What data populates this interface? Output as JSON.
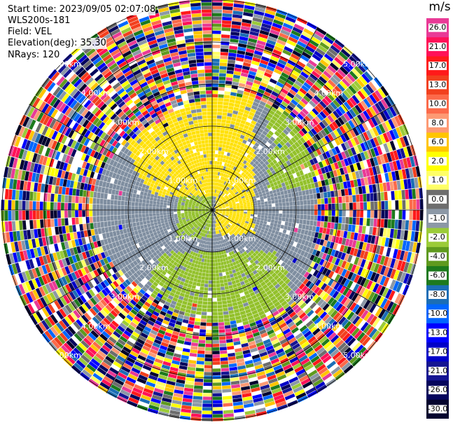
{
  "header": {
    "start_time": "Start time: 2023/09/05 02:07:08",
    "instrument": "WLS200s-181",
    "field": "Field: VEL",
    "elevation": "Elevation(deg): 35.30",
    "nrays": "NRays: 120"
  },
  "plot": {
    "ring_labels": [
      "1.00km",
      "2.00km",
      "3.00km",
      "4.00km",
      "5.00km"
    ],
    "colors": {
      "near_zero": "#7f8ea0",
      "positive_low": "#ffe10a",
      "negative_low": "#93c12b",
      "grid": "#000000",
      "label": "#ffffff"
    }
  },
  "colorbar": {
    "unit": "m/s",
    "ticks": [
      "26.0",
      "21.0",
      "17.0",
      "13.0",
      "10.0",
      "8.0",
      "6.0",
      "2.0",
      "1.0",
      "0.0",
      "-1.0",
      "-2.0",
      "-4.0",
      "-6.0",
      "-8.0",
      "-10.0",
      "-13.0",
      "-17.0",
      "-21.0",
      "-26.0",
      "-30.0"
    ],
    "colors": [
      "#e93a96",
      "#ff1258",
      "#ff1a1a",
      "#f2401e",
      "#fc6a4a",
      "#fd9a74",
      "#ffc500",
      "#ffff00",
      "#ffff66",
      "#6d6d6d",
      "#8c98a6",
      "#9bcb38",
      "#5f9a1e",
      "#1d7a1d",
      "#1b6eb6",
      "#0066ff",
      "#0000ff",
      "#0000c8",
      "#151592",
      "#05055c",
      "#04042e"
    ]
  }
}
